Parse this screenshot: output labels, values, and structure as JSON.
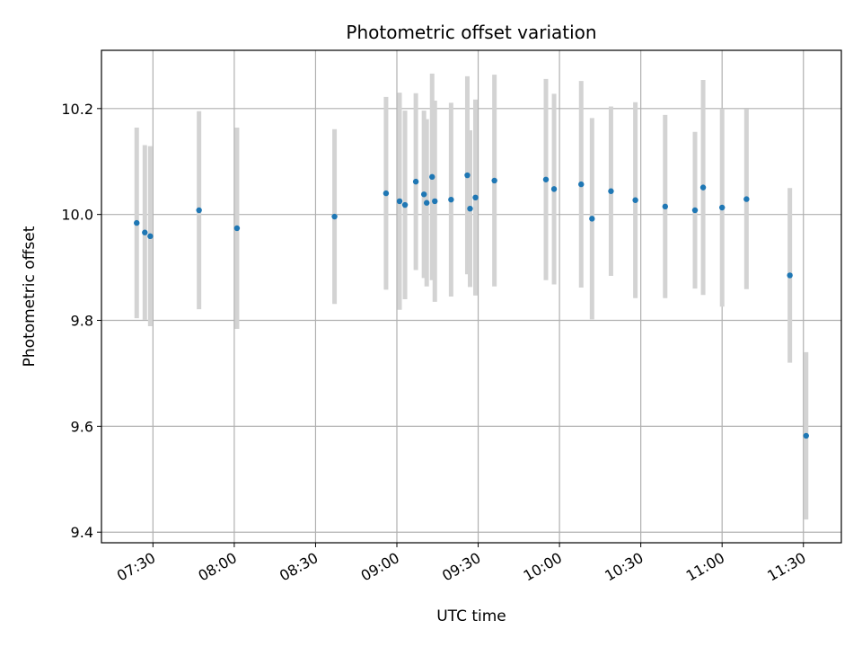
{
  "chart_data": {
    "type": "scatter",
    "title": "Photometric offset variation",
    "xlabel": "UTC time",
    "ylabel": "Photometric offset",
    "x_ticks": [
      "07:30",
      "08:00",
      "08:30",
      "09:00",
      "09:30",
      "10:00",
      "10:30",
      "11:00",
      "11:30"
    ],
    "y_ticks": [
      "9.4",
      "9.6",
      "9.8",
      "10.0",
      "10.2"
    ],
    "xlim": [
      "07:11",
      "11:44"
    ],
    "ylim": [
      9.38,
      10.31
    ],
    "grid": true,
    "colors": {
      "point": "#1f77b4",
      "errorbar": "#d3d3d3",
      "grid": "#b0b0b0"
    },
    "points": [
      {
        "time": "07:24",
        "y": 9.984,
        "err": 0.18
      },
      {
        "time": "07:27",
        "y": 9.966,
        "err": 0.165
      },
      {
        "time": "07:29",
        "y": 9.959,
        "err": 0.17
      },
      {
        "time": "07:47",
        "y": 10.008,
        "err": 0.187
      },
      {
        "time": "08:01",
        "y": 9.974,
        "err": 0.19
      },
      {
        "time": "08:37",
        "y": 9.996,
        "err": 0.165
      },
      {
        "time": "08:56",
        "y": 10.04,
        "err": 0.182
      },
      {
        "time": "09:01",
        "y": 10.025,
        "err": 0.205
      },
      {
        "time": "09:03",
        "y": 10.018,
        "err": 0.178
      },
      {
        "time": "09:07",
        "y": 10.062,
        "err": 0.167
      },
      {
        "time": "09:10",
        "y": 10.038,
        "err": 0.158
      },
      {
        "time": "09:11",
        "y": 10.022,
        "err": 0.158
      },
      {
        "time": "09:13",
        "y": 10.071,
        "err": 0.195
      },
      {
        "time": "09:14",
        "y": 10.025,
        "err": 0.19
      },
      {
        "time": "09:20",
        "y": 10.028,
        "err": 0.183
      },
      {
        "time": "09:26",
        "y": 10.074,
        "err": 0.187
      },
      {
        "time": "09:27",
        "y": 10.011,
        "err": 0.148
      },
      {
        "time": "09:29",
        "y": 10.032,
        "err": 0.185
      },
      {
        "time": "09:36",
        "y": 10.064,
        "err": 0.2
      },
      {
        "time": "09:55",
        "y": 10.066,
        "err": 0.19
      },
      {
        "time": "09:58",
        "y": 10.048,
        "err": 0.18
      },
      {
        "time": "10:08",
        "y": 10.057,
        "err": 0.195
      },
      {
        "time": "10:12",
        "y": 9.992,
        "err": 0.19
      },
      {
        "time": "10:19",
        "y": 10.044,
        "err": 0.16
      },
      {
        "time": "10:28",
        "y": 10.027,
        "err": 0.185
      },
      {
        "time": "10:39",
        "y": 10.015,
        "err": 0.173
      },
      {
        "time": "10:50",
        "y": 10.008,
        "err": 0.148
      },
      {
        "time": "10:53",
        "y": 10.051,
        "err": 0.203
      },
      {
        "time": "11:00",
        "y": 10.013,
        "err": 0.187
      },
      {
        "time": "11:09",
        "y": 10.029,
        "err": 0.17
      },
      {
        "time": "11:25",
        "y": 9.885,
        "err": 0.165
      },
      {
        "time": "11:31",
        "y": 9.582,
        "err": 0.158
      }
    ]
  }
}
